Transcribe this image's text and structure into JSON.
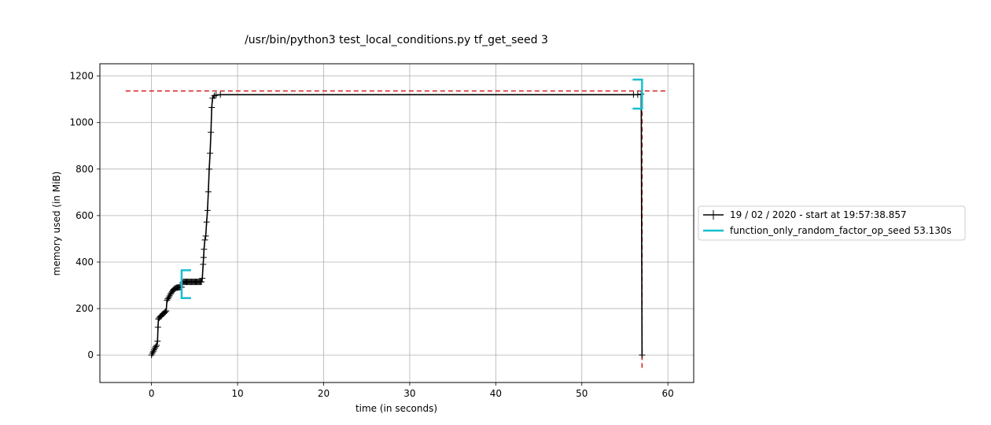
{
  "chart_data": {
    "type": "line",
    "title": "/usr/bin/python3 test_local_conditions.py tf_get_seed 3",
    "xlabel": "time (in seconds)",
    "ylabel": "memory used (in MiB)",
    "xlim": [
      -6,
      63
    ],
    "ylim": [
      -118,
      1253
    ],
    "x_ticks": [
      0,
      10,
      20,
      30,
      40,
      50,
      60
    ],
    "y_ticks": [
      0,
      200,
      400,
      600,
      800,
      1000,
      1200
    ],
    "grid": true,
    "legend_position": "outside-right",
    "series": [
      {
        "name": "19 / 02 / 2020 - start at 19:57:38.857",
        "color": "#000000",
        "marker": "+",
        "samples": [
          [
            0.0,
            0
          ],
          [
            0.1,
            8
          ],
          [
            0.2,
            15
          ],
          [
            0.3,
            22
          ],
          [
            0.4,
            30
          ],
          [
            0.5,
            36
          ],
          [
            0.6,
            42
          ],
          [
            0.7,
            60
          ],
          [
            0.75,
            120
          ],
          [
            0.8,
            155
          ],
          [
            0.9,
            160
          ],
          [
            1.0,
            165
          ],
          [
            1.1,
            168
          ],
          [
            1.2,
            172
          ],
          [
            1.3,
            176
          ],
          [
            1.4,
            178
          ],
          [
            1.5,
            182
          ],
          [
            1.6,
            186
          ],
          [
            1.7,
            190
          ],
          [
            1.8,
            236
          ],
          [
            1.9,
            242
          ],
          [
            2.0,
            248
          ],
          [
            2.1,
            255
          ],
          [
            2.2,
            262
          ],
          [
            2.3,
            268
          ],
          [
            2.4,
            274
          ],
          [
            2.5,
            279
          ],
          [
            2.6,
            283
          ],
          [
            2.7,
            286
          ],
          [
            2.8,
            288
          ],
          [
            2.9,
            290
          ],
          [
            3.0,
            290
          ],
          [
            3.1,
            291
          ],
          [
            3.2,
            291
          ],
          [
            3.3,
            291
          ],
          [
            3.4,
            292
          ],
          [
            3.5,
            292
          ],
          [
            3.6,
            310
          ],
          [
            3.7,
            315
          ],
          [
            3.8,
            315
          ],
          [
            3.9,
            315
          ],
          [
            4.0,
            315
          ],
          [
            4.1,
            315
          ],
          [
            4.2,
            315
          ],
          [
            4.3,
            315
          ],
          [
            4.4,
            315
          ],
          [
            4.5,
            315
          ],
          [
            4.6,
            315
          ],
          [
            4.7,
            315
          ],
          [
            4.8,
            315
          ],
          [
            4.9,
            315
          ],
          [
            5.0,
            315
          ],
          [
            5.1,
            315
          ],
          [
            5.2,
            315
          ],
          [
            5.3,
            315
          ],
          [
            5.4,
            315
          ],
          [
            5.5,
            315
          ],
          [
            5.6,
            315
          ],
          [
            5.7,
            315
          ],
          [
            5.8,
            315
          ],
          [
            5.9,
            330
          ],
          [
            6.0,
            390
          ],
          [
            6.05,
            420
          ],
          [
            6.1,
            455
          ],
          [
            6.2,
            495
          ],
          [
            6.3,
            512
          ],
          [
            6.4,
            572
          ],
          [
            6.5,
            622
          ],
          [
            6.6,
            702
          ],
          [
            6.7,
            800
          ],
          [
            6.8,
            868
          ],
          [
            6.9,
            958
          ],
          [
            7.0,
            1065
          ],
          [
            7.1,
            1105
          ],
          [
            7.3,
            1115
          ],
          [
            7.5,
            1118
          ],
          [
            8.0,
            1120
          ],
          [
            56.0,
            1120
          ],
          [
            56.5,
            1120
          ],
          [
            56.9,
            1122
          ],
          [
            57.0,
            0
          ]
        ]
      },
      {
        "name": "function_only_random_factor_op_seed 53.130s",
        "color": "#17becf",
        "type": "bracket",
        "start": {
          "x": 3.5,
          "ymin": 245,
          "ymax": 365
        },
        "end": {
          "x": 57.0,
          "ymin": 1060,
          "ymax": 1185
        }
      }
    ],
    "reference_lines": [
      {
        "orientation": "horizontal",
        "value": 1136,
        "from": -3,
        "to": 60,
        "color": "#d62728",
        "style": "dashed"
      },
      {
        "orientation": "vertical",
        "value": 57.0,
        "from": -55,
        "to": 1190,
        "color": "#d62728",
        "style": "dashed"
      }
    ]
  }
}
